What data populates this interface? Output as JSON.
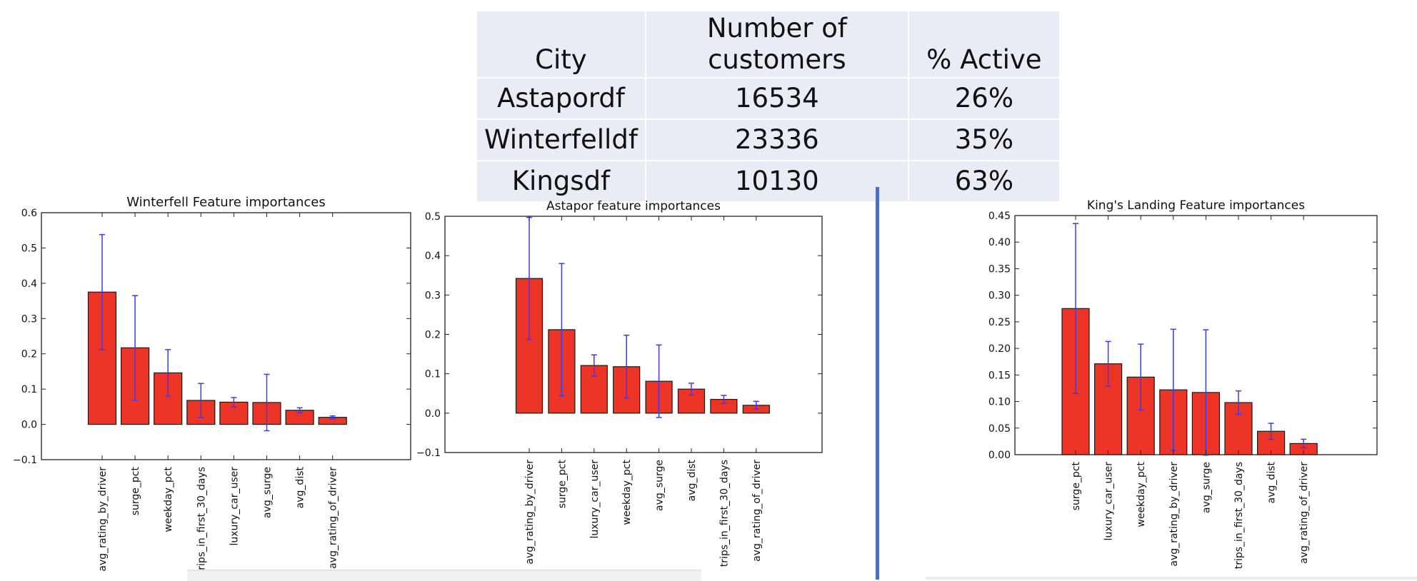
{
  "table": {
    "headers": [
      "City",
      "Number of customers",
      "% Active"
    ],
    "rows": [
      {
        "city": "Astapordf",
        "customers": "16534",
        "active": "26%"
      },
      {
        "city": "Winterfelldf",
        "customers": "23336",
        "active": "35%"
      },
      {
        "city": "Kingsdf",
        "customers": "10130",
        "active": "63%"
      }
    ]
  },
  "chart_data": [
    {
      "type": "bar",
      "title": "Winterfell Feature importances",
      "xlabel": "",
      "ylabel": "",
      "ylim": [
        -0.1,
        0.6
      ],
      "yticks": [
        "−0.1",
        "0.0",
        "0.1",
        "0.2",
        "0.3",
        "0.4",
        "0.5",
        "0.6"
      ],
      "categories": [
        "avg_rating_by_driver",
        "surge_pct",
        "weekday_pct",
        "trips_in_first_30_days",
        "luxury_car_user",
        "avg_surge",
        "avg_dist",
        "avg_rating_of_driver"
      ],
      "values": [
        0.375,
        0.217,
        0.146,
        0.068,
        0.063,
        0.062,
        0.04,
        0.02
      ],
      "errors": [
        0.163,
        0.148,
        0.066,
        0.048,
        0.013,
        0.08,
        0.007,
        0.004
      ],
      "bar_color": "#ec3427",
      "error_color": "#3b3bf0",
      "grid": false
    },
    {
      "type": "bar",
      "title": "Astapor feature importances",
      "xlabel": "",
      "ylabel": "",
      "ylim": [
        -0.1,
        0.5
      ],
      "yticks": [
        "−0.1",
        "0.0",
        "0.1",
        "0.2",
        "0.3",
        "0.4",
        "0.5"
      ],
      "categories": [
        "avg_rating_by_driver",
        "surge_pct",
        "luxury_car_user",
        "weekday_pct",
        "avg_surge",
        "avg_dist",
        "trips_in_first_30_days",
        "avg_rating_of_driver"
      ],
      "values": [
        0.342,
        0.212,
        0.121,
        0.118,
        0.081,
        0.061,
        0.035,
        0.02
      ],
      "errors": [
        0.155,
        0.168,
        0.027,
        0.08,
        0.092,
        0.015,
        0.01,
        0.01
      ],
      "bar_color": "#ec3427",
      "error_color": "#3b3bf0",
      "grid": false
    },
    {
      "type": "bar",
      "title": "King's Landing Feature importances",
      "xlabel": "",
      "ylabel": "",
      "ylim": [
        0,
        0.45
      ],
      "yticks": [
        "0.00",
        "0.05",
        "0.10",
        "0.15",
        "0.20",
        "0.25",
        "0.30",
        "0.35",
        "0.40",
        "0.45"
      ],
      "categories": [
        "surge_pct",
        "luxury_car_user",
        "weekday_pct",
        "avg_rating_by_driver",
        "avg_surge",
        "trips_in_first_30_days",
        "avg_dist",
        "avg_rating_of_driver"
      ],
      "values": [
        0.275,
        0.171,
        0.146,
        0.122,
        0.117,
        0.098,
        0.044,
        0.021
      ],
      "errors": [
        0.16,
        0.042,
        0.062,
        0.114,
        0.118,
        0.022,
        0.015,
        0.008
      ],
      "bar_color": "#ec3427",
      "error_color": "#3b3bf0",
      "grid": false
    }
  ]
}
